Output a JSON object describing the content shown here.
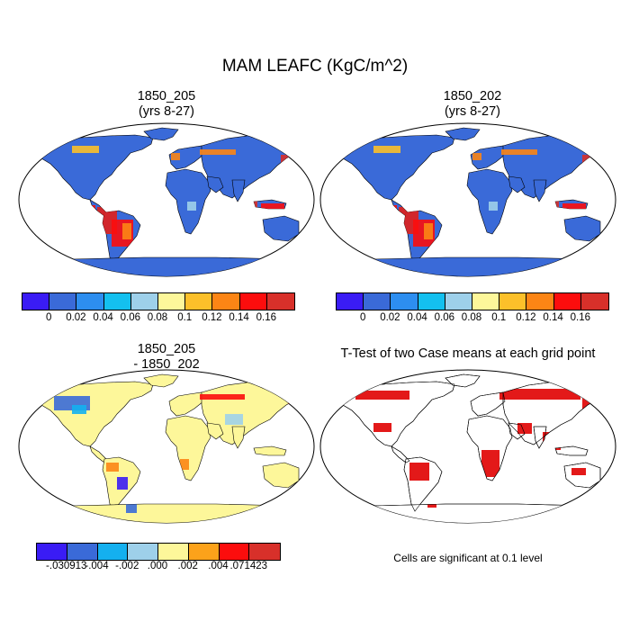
{
  "title": "MAM LEAFC (KgC/m^2)",
  "panels": {
    "top_left": {
      "title": "1850_205\n(yrs 8-27)"
    },
    "top_right": {
      "title": "1850_202\n(yrs 8-27)"
    },
    "bottom_left": {
      "title": "1850_205\n- 1850_202"
    },
    "bottom_right": {
      "title": "T-Test of two Case means at each grid point"
    }
  },
  "colorbar_abs": {
    "colors": [
      "#3a1cf5",
      "#3a6ad8",
      "#2d8ef0",
      "#14c0ef",
      "#9ed0ea",
      "#fdf79a",
      "#fcc02a",
      "#fc8515",
      "#fc0d0d",
      "#d8302a"
    ],
    "labels": [
      "0",
      "0.02",
      "0.04",
      "0.06",
      "0.08",
      "0.1",
      "0.12",
      "0.14",
      "0.16"
    ]
  },
  "colorbar_diff": {
    "colors": [
      "#3a1cf5",
      "#3a6ad8",
      "#14b0ef",
      "#9ed0ea",
      "#fdf79a",
      "#fca21a",
      "#fc0d0d",
      "#d8302a"
    ],
    "labels": [
      "-.030913",
      "-.004",
      "-.002",
      ".000",
      ".002",
      ".004",
      ".071423"
    ]
  },
  "significance_note": "Cells are significant at 0.1 level",
  "map_colors": {
    "land_default": "#3a6ad8",
    "diff_default": "#fdf79a",
    "significant": "#e00000"
  }
}
